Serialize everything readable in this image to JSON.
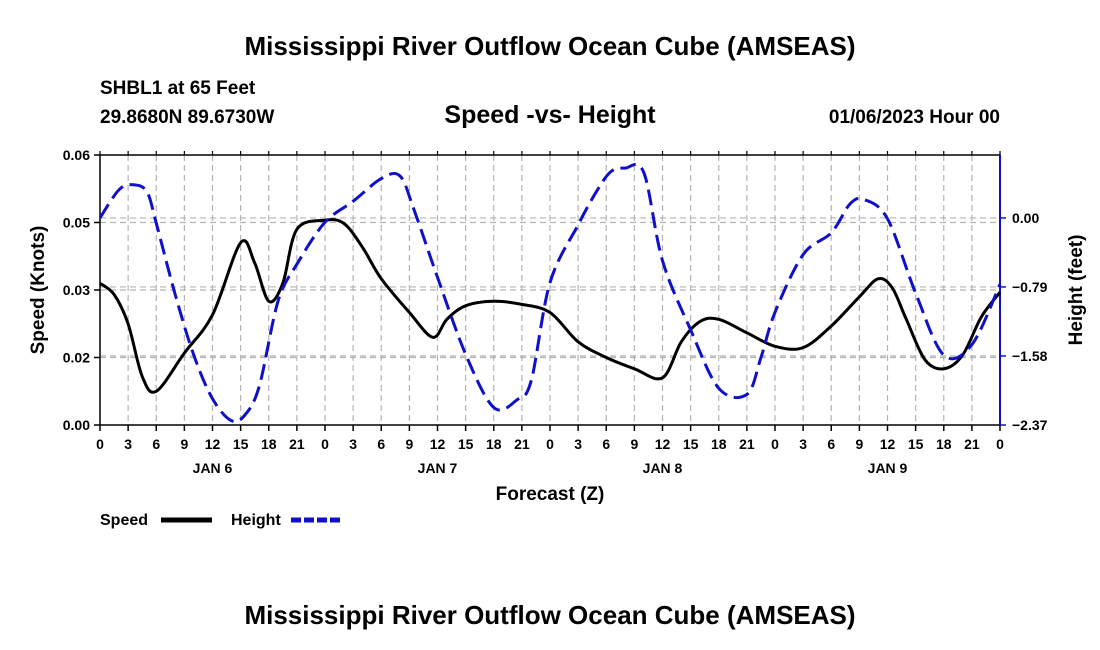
{
  "title": "Mississippi River Outflow Ocean Cube (AMSEAS)",
  "title_repeat": "Mississippi River Outflow Ocean Cube (AMSEAS)",
  "station": "SHBL1 at 65 Feet",
  "coords": "29.8680N  89.6730W",
  "subtitle": "Speed -vs- Height",
  "datetime": "01/06/2023 Hour 00",
  "legend": {
    "speed": "Speed",
    "height": "Height"
  },
  "colors": {
    "speed": "#000000",
    "height": "#1010c8"
  },
  "chart_data": {
    "type": "line",
    "title": "Speed -vs- Height",
    "xlabel": "Forecast (Z)",
    "ylabel": "Speed (Knots)",
    "y2label": "Height (feet)",
    "x_hours": [
      0,
      3,
      6,
      9,
      12,
      15,
      18,
      21,
      24,
      27,
      30,
      33,
      36,
      39,
      42,
      45,
      48,
      51,
      54,
      57,
      60,
      63,
      66,
      69,
      72,
      75,
      78,
      81,
      84,
      87,
      90,
      93,
      96
    ],
    "x_tick_labels": [
      "0",
      "3",
      "6",
      "9",
      "12",
      "15",
      "18",
      "21",
      "0",
      "3",
      "6",
      "9",
      "12",
      "15",
      "18",
      "21",
      "0",
      "3",
      "6",
      "9",
      "12",
      "15",
      "18",
      "21",
      "0",
      "3",
      "6",
      "9",
      "12",
      "15",
      "18",
      "21",
      "0"
    ],
    "day_labels": [
      {
        "hour": 12,
        "label": "JAN 6"
      },
      {
        "hour": 36,
        "label": "JAN 7"
      },
      {
        "hour": 60,
        "label": "JAN 8"
      },
      {
        "hour": 84,
        "label": "JAN 9"
      }
    ],
    "xlim": [
      0,
      96
    ],
    "ylim": [
      0,
      0.06
    ],
    "y_ticks": [
      0,
      0.015,
      0.03,
      0.045,
      0.06
    ],
    "y_tick_labels": [
      "0.00",
      "0.02",
      "0.03",
      "0.05",
      "0.06"
    ],
    "y2lim": [
      -2.37,
      0.72
    ],
    "y2_ticks": [
      0,
      -0.79,
      -1.58,
      -2.37
    ],
    "y2_tick_labels": [
      "0.00",
      "−0.79",
      "−1.58",
      "−2.37"
    ],
    "series": [
      {
        "name": "Speed",
        "axis": "left",
        "style": "solid",
        "x": [
          0,
          1.5,
          3,
          4.5,
          6,
          9,
          12,
          15,
          16.5,
          18,
          19.5,
          21,
          24,
          26,
          28,
          30,
          33,
          35.5,
          37,
          39,
          42,
          45,
          48,
          51,
          54,
          57,
          60,
          62,
          64,
          66,
          69,
          72,
          75,
          78,
          81,
          83,
          84.5,
          86,
          88,
          90,
          92,
          94,
          96
        ],
        "values": [
          0.0315,
          0.029,
          0.0225,
          0.0108,
          0.0075,
          0.016,
          0.0245,
          0.0405,
          0.036,
          0.0275,
          0.0315,
          0.0435,
          0.0455,
          0.0448,
          0.0395,
          0.0325,
          0.025,
          0.0195,
          0.0235,
          0.0265,
          0.0275,
          0.0268,
          0.025,
          0.0185,
          0.015,
          0.0125,
          0.0105,
          0.0185,
          0.023,
          0.0235,
          0.0205,
          0.0175,
          0.0172,
          0.022,
          0.0285,
          0.0325,
          0.0305,
          0.0235,
          0.0145,
          0.0125,
          0.0155,
          0.024,
          0.0295
        ]
      },
      {
        "name": "Height",
        "axis": "right",
        "style": "dashed",
        "x": [
          0,
          2,
          3.5,
          5,
          6,
          8,
          10,
          12,
          14,
          15.5,
          17,
          19,
          21,
          24,
          27,
          30,
          32,
          33.5,
          36,
          39,
          42,
          44.5,
          46,
          48,
          51,
          53,
          54.5,
          56,
          58,
          60,
          63,
          66,
          69,
          70.5,
          72,
          75,
          78,
          80,
          81.5,
          84,
          87,
          90,
          93,
          96
        ],
        "values": [
          0.0,
          0.32,
          0.38,
          0.3,
          -0.06,
          -0.87,
          -1.57,
          -2.07,
          -2.32,
          -2.25,
          -1.92,
          -0.95,
          -0.53,
          -0.05,
          0.19,
          0.45,
          0.48,
          0.09,
          -0.68,
          -1.56,
          -2.17,
          -2.08,
          -1.86,
          -0.74,
          -0.08,
          0.31,
          0.53,
          0.57,
          0.52,
          -0.49,
          -1.28,
          -1.95,
          -2.02,
          -1.6,
          -1.08,
          -0.42,
          -0.17,
          0.16,
          0.21,
          -0.01,
          -0.86,
          -1.57,
          -1.45,
          -0.76
        ]
      }
    ]
  }
}
